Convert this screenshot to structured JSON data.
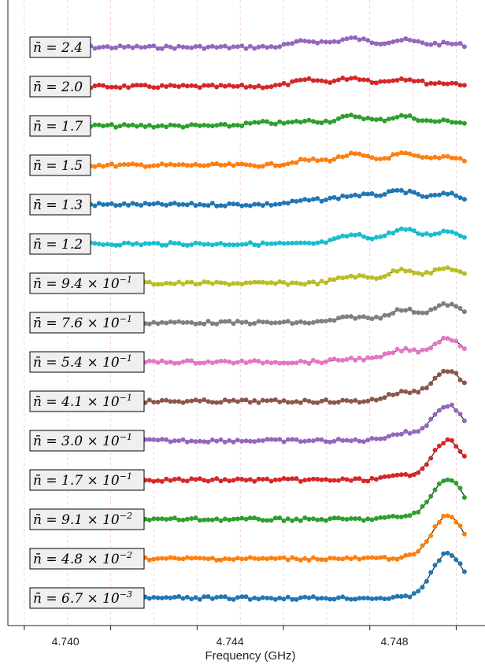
{
  "chart_data": {
    "type": "line",
    "title": "",
    "xlabel": "Frequency (GHz)",
    "ylabel": "",
    "xlim": [
      4.7386,
      4.7502
    ],
    "x_ticks": [
      "4.740",
      "4.744",
      "4.748"
    ],
    "x_tick_values": [
      4.74,
      4.744,
      4.748
    ],
    "grid": "vertical dashed",
    "series": [
      {
        "label": "n̄ = 2.4",
        "color": "#9467bd",
        "peaks": [
          [
            4.7459,
            0.38
          ],
          [
            4.747,
            0.55
          ],
          [
            4.7482,
            0.45
          ],
          [
            4.7493,
            0.22
          ]
        ]
      },
      {
        "label": "n̄ = 2.0",
        "color": "#d62728",
        "peaks": [
          [
            4.7459,
            0.4
          ],
          [
            4.747,
            0.55
          ],
          [
            4.7482,
            0.5
          ],
          [
            4.7493,
            0.22
          ]
        ]
      },
      {
        "label": "n̄ = 1.7",
        "color": "#2ca02c",
        "peaks": [
          [
            4.7448,
            0.2
          ],
          [
            4.7459,
            0.3
          ],
          [
            4.747,
            0.62
          ],
          [
            4.7482,
            0.62
          ],
          [
            4.7493,
            0.3
          ]
        ]
      },
      {
        "label": "n̄ = 1.5",
        "color": "#ff7f0e",
        "peaks": [
          [
            4.7459,
            0.32
          ],
          [
            4.747,
            0.68
          ],
          [
            4.7482,
            0.7
          ],
          [
            4.7493,
            0.55
          ]
        ]
      },
      {
        "label": "n̄ = 1.3",
        "color": "#1f77b4",
        "peaks": [
          [
            4.7459,
            0.25
          ],
          [
            4.7468,
            0.4
          ],
          [
            4.7474,
            0.4
          ],
          [
            4.7482,
            0.8
          ],
          [
            4.7493,
            0.65
          ]
        ]
      },
      {
        "label": "n̄ = 1.2",
        "color": "#17becf",
        "peaks": [
          [
            4.747,
            0.55
          ],
          [
            4.7482,
            0.9
          ],
          [
            4.7493,
            0.8
          ]
        ]
      },
      {
        "label": "n̄ = 9.4 × 10−1",
        "color": "#bcbd22",
        "peaks": [
          [
            4.747,
            0.45
          ],
          [
            4.7482,
            0.85
          ],
          [
            4.7493,
            0.95
          ]
        ]
      },
      {
        "label": "n̄ = 7.6 × 10−1",
        "color": "#7f7f7f",
        "peaks": [
          [
            4.747,
            0.35
          ],
          [
            4.7482,
            0.8
          ],
          [
            4.7493,
            1.15
          ]
        ]
      },
      {
        "label": "n̄ = 5.4 × 10−1",
        "color": "#e377c2",
        "peaks": [
          [
            4.747,
            0.2
          ],
          [
            4.7482,
            0.75
          ],
          [
            4.7493,
            1.5
          ]
        ]
      },
      {
        "label": "n̄ = 4.1 × 10−1",
        "color": "#8c564b",
        "peaks": [
          [
            4.7482,
            0.55
          ],
          [
            4.7493,
            1.95
          ]
        ]
      },
      {
        "label": "n̄ = 3.0 × 10−1",
        "color": "#9467bd",
        "peaks": [
          [
            4.7482,
            0.45
          ],
          [
            4.7493,
            2.25
          ]
        ]
      },
      {
        "label": "n̄ = 1.7 × 10−1",
        "color": "#d62728",
        "peaks": [
          [
            4.7482,
            0.25
          ],
          [
            4.7493,
            2.5
          ]
        ]
      },
      {
        "label": "n̄ = 9.1 × 10−2",
        "color": "#2ca02c",
        "peaks": [
          [
            4.7482,
            0.15
          ],
          [
            4.7493,
            2.6
          ]
        ]
      },
      {
        "label": "n̄ = 4.8 × 10−2",
        "color": "#ff7f0e",
        "peaks": [
          [
            4.7482,
            0.05
          ],
          [
            4.7493,
            2.75
          ]
        ]
      },
      {
        "label": "n̄ = 6.7 × 10−3",
        "color": "#1f77b4",
        "peaks": [
          [
            4.7493,
            2.85
          ]
        ]
      }
    ]
  },
  "labels_display": [
    {
      "base": "n̄ = 2.4",
      "exp": ""
    },
    {
      "base": "n̄ = 2.0",
      "exp": ""
    },
    {
      "base": "n̄ = 1.7",
      "exp": ""
    },
    {
      "base": "n̄ = 1.5",
      "exp": ""
    },
    {
      "base": "n̄ = 1.3",
      "exp": ""
    },
    {
      "base": "n̄ = 1.2",
      "exp": ""
    },
    {
      "base": "n̄ = 9.4 × 10",
      "exp": "−1"
    },
    {
      "base": "n̄ = 7.6 × 10",
      "exp": "−1"
    },
    {
      "base": "n̄ = 5.4 × 10",
      "exp": "−1"
    },
    {
      "base": "n̄ = 4.1 × 10",
      "exp": "−1"
    },
    {
      "base": "n̄ = 3.0 × 10",
      "exp": "−1"
    },
    {
      "base": "n̄ = 1.7 × 10",
      "exp": "−1"
    },
    {
      "base": "n̄ = 9.1 × 10",
      "exp": "−2"
    },
    {
      "base": "n̄ = 4.8 × 10",
      "exp": "−2"
    },
    {
      "base": "n̄ = 6.7 × 10",
      "exp": "−3"
    }
  ]
}
